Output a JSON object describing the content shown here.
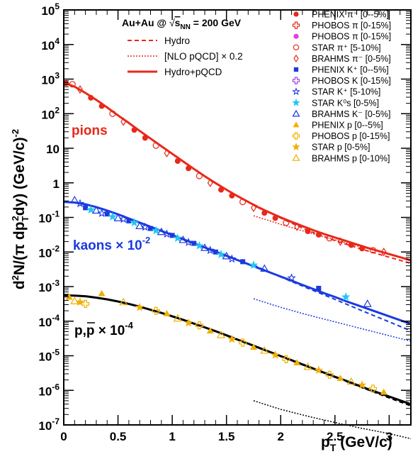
{
  "chart_data": {
    "type": "scatter",
    "title": "Au+Au @ √s_NN = 200 GeV",
    "title_prefix": "Au+Au @ ",
    "title_sqrt_s": "s",
    "title_sqrt_sub": "NN",
    "title_suffix": " = 200 GeV",
    "xlabel_main": "p",
    "xlabel_sub": "T",
    "xlabel_unit": " (GeV/c)",
    "ylabel_a": "d",
    "ylabel_a_sup": "2",
    "ylabel_b": "N/(π dp",
    "ylabel_b_sub": "T",
    "ylabel_b_sup": "2",
    "ylabel_c": "dy) (GeV/c)",
    "ylabel_c_sup": "-2",
    "xlim": [
      0,
      3.2
    ],
    "ylim_log10": [
      -7,
      5
    ],
    "x_ticks": [
      "0",
      "0.5",
      "1",
      "1.5",
      "2",
      "2.5",
      "3"
    ],
    "y_ticks": [
      {
        "base": "10",
        "exp": "5"
      },
      {
        "base": "10",
        "exp": "4"
      },
      {
        "base": "10",
        "exp": "3"
      },
      {
        "base": "10",
        "exp": "2"
      },
      {
        "base": "",
        "exp": "",
        "plain": "10"
      },
      {
        "base": "",
        "exp": "",
        "plain": "1"
      },
      {
        "base": "10",
        "exp": "-1"
      },
      {
        "base": "10",
        "exp": "-2"
      },
      {
        "base": "10",
        "exp": "-3"
      },
      {
        "base": "10",
        "exp": "-4"
      },
      {
        "base": "10",
        "exp": "-5"
      },
      {
        "base": "10",
        "exp": "-6"
      },
      {
        "base": "10",
        "exp": "-7"
      }
    ],
    "model_legend": [
      {
        "label": "Hydro",
        "style": "dashed"
      },
      {
        "label": "[NLO pQCD] × 0.2",
        "style": "dotted"
      },
      {
        "label": "Hydro+pQCD",
        "style": "solid"
      }
    ],
    "data_legend": [
      {
        "label": "PHENIX π⁻ [0--5%]",
        "marker": "circle-filled",
        "color": "#e8281a"
      },
      {
        "label": "PHOBOS π [0-15%]",
        "marker": "cross-open",
        "color": "#e8281a"
      },
      {
        "label": "PHOBOS π [0-15%]",
        "marker": "circle-filled",
        "color": "#e040e0"
      },
      {
        "label": "STAR π⁺ [5-10%]",
        "marker": "circle-open",
        "color": "#e8281a"
      },
      {
        "label": "BRAHMS π⁻ [0-5%]",
        "marker": "diamond-open",
        "color": "#e8281a"
      },
      {
        "label": "PHENIX K⁺ [0--5%]",
        "marker": "square-filled",
        "color": "#1a3ae0"
      },
      {
        "label": "PHOBOS K [0-15%]",
        "marker": "cross-open",
        "color": "#a040e0"
      },
      {
        "label": "STAR K⁺ [5-10%]",
        "marker": "star-open",
        "color": "#1a3ae0"
      },
      {
        "label": "STAR K⁰s [0-5%]",
        "marker": "star-filled",
        "color": "#20c8f0"
      },
      {
        "label": "BRAHMS K⁻ [0-5%]",
        "marker": "triangle-open",
        "color": "#1a3ae0"
      },
      {
        "label": "PHENIX p [0--5%]",
        "marker": "triangle-filled",
        "color": "#f0b000"
      },
      {
        "label": "PHOBOS p [0-15%]",
        "marker": "cross-open",
        "color": "#f0b000"
      },
      {
        "label": "STAR p [0-5%]",
        "marker": "star-filled",
        "color": "#f0b000"
      },
      {
        "label": "BRAHMS p [0-10%]",
        "marker": "triangle-open",
        "color": "#f0b000"
      }
    ],
    "annotations": [
      {
        "text": "pions",
        "color": "#e8281a"
      },
      {
        "text": "kaons × 10",
        "sup": "-2",
        "color": "#1a3ae0"
      },
      {
        "text": "p,p × 10",
        "sup": "-4",
        "color": "#000000"
      }
    ],
    "series": [
      {
        "name": "pions",
        "color": "#e8281a",
        "hydro_pqcd": {
          "x": [
            0,
            0.1,
            0.2,
            0.3,
            0.4,
            0.5,
            0.6,
            0.7,
            0.8,
            0.9,
            1.0,
            1.1,
            1.2,
            1.3,
            1.4,
            1.5,
            1.6,
            1.7,
            1.8,
            1.9,
            2.0,
            2.1,
            2.2,
            2.3,
            2.4,
            2.5,
            2.6,
            2.7,
            2.8,
            2.9,
            3.0,
            3.1,
            3.2
          ],
          "log10y": [
            2.9,
            2.78,
            2.6,
            2.4,
            2.18,
            1.95,
            1.73,
            1.5,
            1.28,
            1.06,
            0.84,
            0.62,
            0.4,
            0.19,
            -0.01,
            -0.2,
            -0.38,
            -0.55,
            -0.72,
            -0.86,
            -1.0,
            -1.13,
            -1.25,
            -1.37,
            -1.48,
            -1.58,
            -1.68,
            -1.78,
            -1.88,
            -1.97,
            -2.06,
            -2.15,
            -2.24
          ]
        },
        "hydro": {
          "x": [
            1.75,
            2.0,
            2.25,
            2.5,
            2.75,
            3.0,
            3.2
          ],
          "log10y": [
            -0.62,
            -1.02,
            -1.38,
            -1.67,
            -1.92,
            -2.15,
            -2.33
          ]
        },
        "nlo": {
          "x": [
            1.75,
            2.0,
            2.25,
            2.5,
            2.75,
            3.0,
            3.2
          ],
          "log10y": [
            -0.95,
            -1.2,
            -1.43,
            -1.65,
            -1.86,
            -2.06,
            -2.22
          ]
        },
        "data": {
          "x": [
            0.02,
            0.08,
            0.15,
            0.25,
            0.35,
            0.45,
            0.55,
            0.65,
            0.75,
            0.85,
            0.95,
            1.05,
            1.15,
            1.25,
            1.35,
            1.45,
            1.55,
            1.65,
            1.75,
            1.85,
            1.95,
            2.05,
            2.15,
            2.25,
            2.35,
            2.45,
            2.55,
            2.65,
            2.75,
            2.85,
            2.95
          ],
          "log10y": [
            2.88,
            2.85,
            2.7,
            2.46,
            2.22,
            2.0,
            1.77,
            1.53,
            1.3,
            1.08,
            0.86,
            0.63,
            0.42,
            0.2,
            0.0,
            -0.2,
            -0.37,
            -0.55,
            -0.72,
            -0.87,
            -1.02,
            -1.15,
            -1.27,
            -1.4,
            -1.5,
            -1.6,
            -1.7,
            -1.8,
            -1.9,
            -1.95,
            -2.0
          ]
        }
      },
      {
        "name": "kaons",
        "color": "#1a3ae0",
        "hydro_pqcd": {
          "x": [
            0,
            0.1,
            0.2,
            0.3,
            0.4,
            0.5,
            0.6,
            0.7,
            0.8,
            0.9,
            1.0,
            1.1,
            1.2,
            1.3,
            1.4,
            1.5,
            1.6,
            1.7,
            1.8,
            1.9,
            2.0,
            2.1,
            2.2,
            2.3,
            2.4,
            2.5,
            2.6,
            2.7,
            2.8,
            2.9,
            3.0,
            3.1,
            3.2
          ],
          "log10y": [
            -0.55,
            -0.57,
            -0.62,
            -0.7,
            -0.8,
            -0.91,
            -1.03,
            -1.15,
            -1.27,
            -1.39,
            -1.51,
            -1.63,
            -1.75,
            -1.87,
            -1.99,
            -2.11,
            -2.23,
            -2.35,
            -2.47,
            -2.59,
            -2.71,
            -2.83,
            -2.95,
            -3.07,
            -3.19,
            -3.3,
            -3.42,
            -3.53,
            -3.64,
            -3.75,
            -3.86,
            -3.97,
            -4.08
          ]
        },
        "hydro": {
          "x": [
            1.75,
            2.0,
            2.25,
            2.5,
            2.75,
            3.0,
            3.2
          ],
          "log10y": [
            -2.38,
            -2.72,
            -3.05,
            -3.37,
            -3.7,
            -4.02,
            -4.28
          ]
        },
        "nlo": {
          "x": [
            1.75,
            2.0,
            2.25,
            2.5,
            2.75,
            3.0,
            3.2
          ],
          "log10y": [
            -3.35,
            -3.6,
            -3.82,
            -4.02,
            -4.22,
            -4.42,
            -4.58
          ]
        },
        "data": {
          "x": [
            0.1,
            0.15,
            0.2,
            0.25,
            0.3,
            0.35,
            0.4,
            0.45,
            0.5,
            0.55,
            0.6,
            0.65,
            0.7,
            0.75,
            0.8,
            0.85,
            0.9,
            0.95,
            1.0,
            1.05,
            1.1,
            1.15,
            1.2,
            1.25,
            1.3,
            1.35,
            1.4,
            1.45,
            1.5,
            1.55,
            1.65,
            1.75,
            1.85,
            2.1,
            2.35,
            2.6,
            2.8
          ],
          "log10y": [
            -0.5,
            -0.6,
            -0.72,
            -0.78,
            -0.8,
            -0.88,
            -0.9,
            -0.98,
            -1.02,
            -1.05,
            -1.1,
            -1.15,
            -1.25,
            -1.28,
            -1.32,
            -1.38,
            -1.42,
            -1.48,
            -1.52,
            -1.6,
            -1.65,
            -1.72,
            -1.75,
            -1.82,
            -1.88,
            -1.95,
            -2.0,
            -2.07,
            -2.12,
            -2.2,
            -2.28,
            -2.38,
            -2.48,
            -2.75,
            -3.05,
            -3.3,
            -3.5
          ]
        }
      },
      {
        "name": "p,p̄",
        "color": "#000000",
        "hydro_pqcd": {
          "x": [
            0,
            0.1,
            0.2,
            0.3,
            0.4,
            0.5,
            0.6,
            0.7,
            0.8,
            0.9,
            1.0,
            1.1,
            1.2,
            1.3,
            1.4,
            1.5,
            1.6,
            1.7,
            1.8,
            1.9,
            2.0,
            2.1,
            2.2,
            2.3,
            2.4,
            2.5,
            2.6,
            2.7,
            2.8,
            2.9,
            3.0,
            3.1,
            3.2
          ],
          "log10y": [
            -3.25,
            -3.26,
            -3.28,
            -3.32,
            -3.37,
            -3.43,
            -3.5,
            -3.58,
            -3.67,
            -3.76,
            -3.86,
            -3.96,
            -4.07,
            -4.18,
            -4.29,
            -4.41,
            -4.53,
            -4.65,
            -4.77,
            -4.89,
            -5.01,
            -5.13,
            -5.25,
            -5.37,
            -5.49,
            -5.61,
            -5.72,
            -5.84,
            -5.96,
            -6.07,
            -6.18,
            -6.29,
            -6.4
          ]
        },
        "hydro": {
          "x": [
            1.75,
            2.0,
            2.25,
            2.5,
            2.75,
            3.0,
            3.2
          ],
          "log10y": [
            -4.72,
            -5.02,
            -5.32,
            -5.62,
            -5.92,
            -6.22,
            -6.45
          ]
        },
        "nlo": {
          "x": [
            1.75,
            2.0,
            2.25,
            2.5,
            2.75,
            3.0,
            3.2
          ],
          "log10y": [
            -6.3,
            -6.55,
            -6.75,
            -6.93,
            -7.1,
            -7.25,
            -7.4
          ]
        },
        "data": {
          "x": [
            0.05,
            0.1,
            0.15,
            0.2,
            0.35,
            0.55,
            0.7,
            0.85,
            0.95,
            1.05,
            1.15,
            1.25,
            1.35,
            1.45,
            1.55,
            1.65,
            1.75,
            1.85,
            1.95,
            2.05,
            2.15,
            2.25,
            2.35,
            2.45,
            2.55,
            2.65,
            2.75,
            2.85,
            2.95
          ],
          "log10y": [
            -3.3,
            -3.42,
            -3.45,
            -3.5,
            -3.2,
            -3.45,
            -3.6,
            -3.7,
            -3.78,
            -3.92,
            -4.05,
            -4.12,
            -4.28,
            -4.4,
            -4.52,
            -4.62,
            -4.75,
            -4.85,
            -4.98,
            -5.1,
            -5.2,
            -5.32,
            -5.42,
            -5.55,
            -5.65,
            -5.75,
            -5.85,
            -5.95,
            -6.05
          ]
        }
      }
    ]
  }
}
